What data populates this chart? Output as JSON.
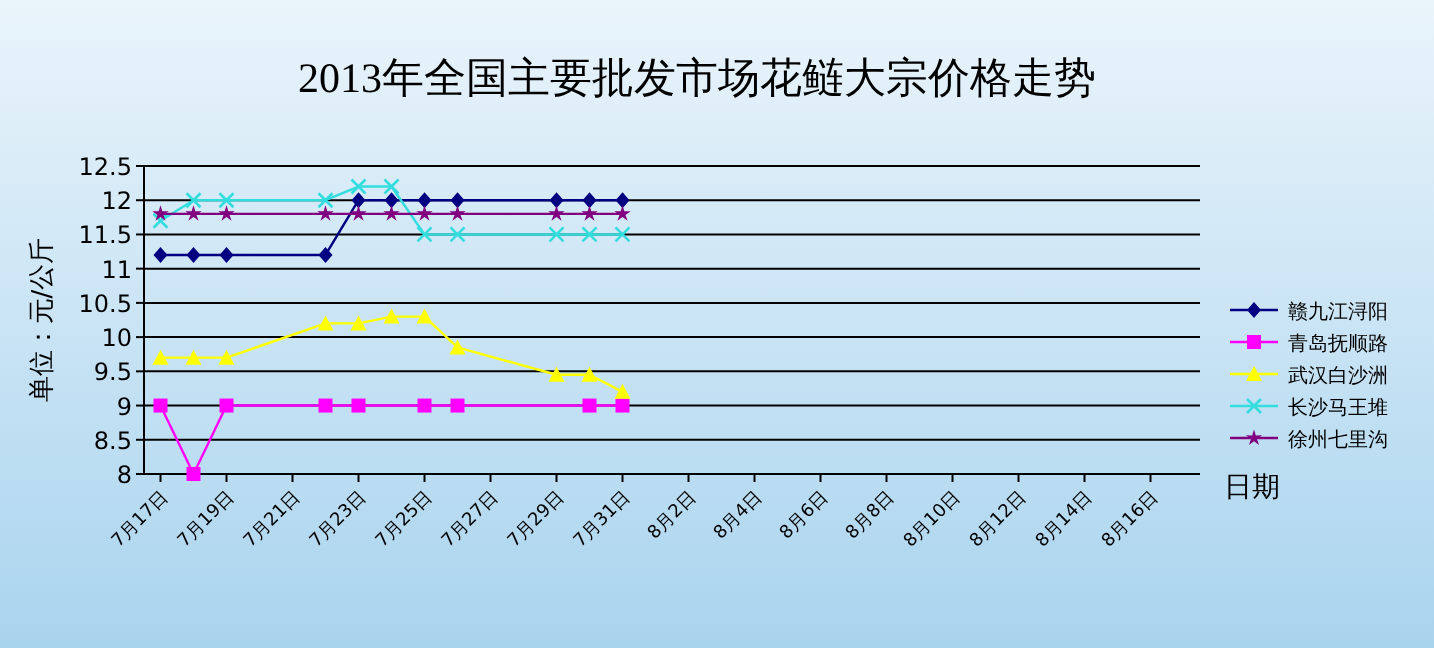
{
  "chart_data": {
    "type": "line",
    "title": "2013年全国主要批发市场花鲢大宗价格走势",
    "xlabel": "日期",
    "ylabel": "单位：元/公斤",
    "xlim": [
      "2013-07-16T12:00",
      "2013-08-17T12:00"
    ],
    "xticks": [
      {
        "value": "2013-07-17",
        "label": "7月17日"
      },
      {
        "value": "2013-07-19",
        "label": "7月19日"
      },
      {
        "value": "2013-07-21",
        "label": "7月21日"
      },
      {
        "value": "2013-07-23",
        "label": "7月23日"
      },
      {
        "value": "2013-07-25",
        "label": "7月25日"
      },
      {
        "value": "2013-07-27",
        "label": "7月27日"
      },
      {
        "value": "2013-07-29",
        "label": "7月29日"
      },
      {
        "value": "2013-07-31",
        "label": "7月31日"
      },
      {
        "value": "2013-08-02",
        "label": "8月2日"
      },
      {
        "value": "2013-08-04",
        "label": "8月4日"
      },
      {
        "value": "2013-08-06",
        "label": "8月6日"
      },
      {
        "value": "2013-08-08",
        "label": "8月8日"
      },
      {
        "value": "2013-08-10",
        "label": "8月10日"
      },
      {
        "value": "2013-08-12",
        "label": "8月12日"
      },
      {
        "value": "2013-08-14",
        "label": "8月14日"
      },
      {
        "value": "2013-08-16",
        "label": "8月16日"
      }
    ],
    "ylim": [
      8,
      12.5
    ],
    "yticks": [
      8,
      8.5,
      9,
      9.5,
      10,
      10.5,
      11,
      11.5,
      12,
      12.5
    ],
    "grid": "y",
    "legend": "right",
    "series": [
      {
        "name": "赣九江浔阳",
        "color": "#000080",
        "marker": "diamond",
        "x": [
          "2013-07-17",
          "2013-07-18",
          "2013-07-19",
          "2013-07-22",
          "2013-07-23",
          "2013-07-24",
          "2013-07-25",
          "2013-07-26",
          "2013-07-29",
          "2013-07-30",
          "2013-07-31"
        ],
        "values": [
          11.2,
          11.2,
          11.2,
          11.2,
          12,
          12,
          12,
          12,
          12,
          12,
          12
        ]
      },
      {
        "name": "青岛抚顺路",
        "color": "#ff00ff",
        "marker": "square",
        "x": [
          "2013-07-17",
          "2013-07-18",
          "2013-07-19",
          "2013-07-22",
          "2013-07-23",
          "2013-07-25",
          "2013-07-26",
          "2013-07-30",
          "2013-07-31"
        ],
        "values": [
          9,
          8,
          9,
          9,
          9,
          9,
          9,
          9,
          9
        ]
      },
      {
        "name": "武汉白沙洲",
        "color": "#ffff00",
        "marker": "triangle",
        "x": [
          "2013-07-17",
          "2013-07-18",
          "2013-07-19",
          "2013-07-22",
          "2013-07-23",
          "2013-07-24",
          "2013-07-25",
          "2013-07-26",
          "2013-07-29",
          "2013-07-30",
          "2013-07-31"
        ],
        "values": [
          9.7,
          9.7,
          9.7,
          10.2,
          10.2,
          10.3,
          10.3,
          9.85,
          9.45,
          9.45,
          9.2
        ]
      },
      {
        "name": "长沙马王堆",
        "color": "#33dddd",
        "marker": "cross",
        "x": [
          "2013-07-17",
          "2013-07-18",
          "2013-07-19",
          "2013-07-22",
          "2013-07-23",
          "2013-07-24",
          "2013-07-25",
          "2013-07-26",
          "2013-07-29",
          "2013-07-30",
          "2013-07-31"
        ],
        "values": [
          11.7,
          12,
          12,
          12,
          12.2,
          12.2,
          11.5,
          11.5,
          11.5,
          11.5,
          11.5
        ]
      },
      {
        "name": "徐州七里沟",
        "color": "#800080",
        "marker": "star",
        "x": [
          "2013-07-17",
          "2013-07-18",
          "2013-07-19",
          "2013-07-22",
          "2013-07-23",
          "2013-07-24",
          "2013-07-25",
          "2013-07-26",
          "2013-07-29",
          "2013-07-30",
          "2013-07-31"
        ],
        "values": [
          11.8,
          11.8,
          11.8,
          11.8,
          11.8,
          11.8,
          11.8,
          11.8,
          11.8,
          11.8,
          11.8
        ]
      }
    ]
  }
}
